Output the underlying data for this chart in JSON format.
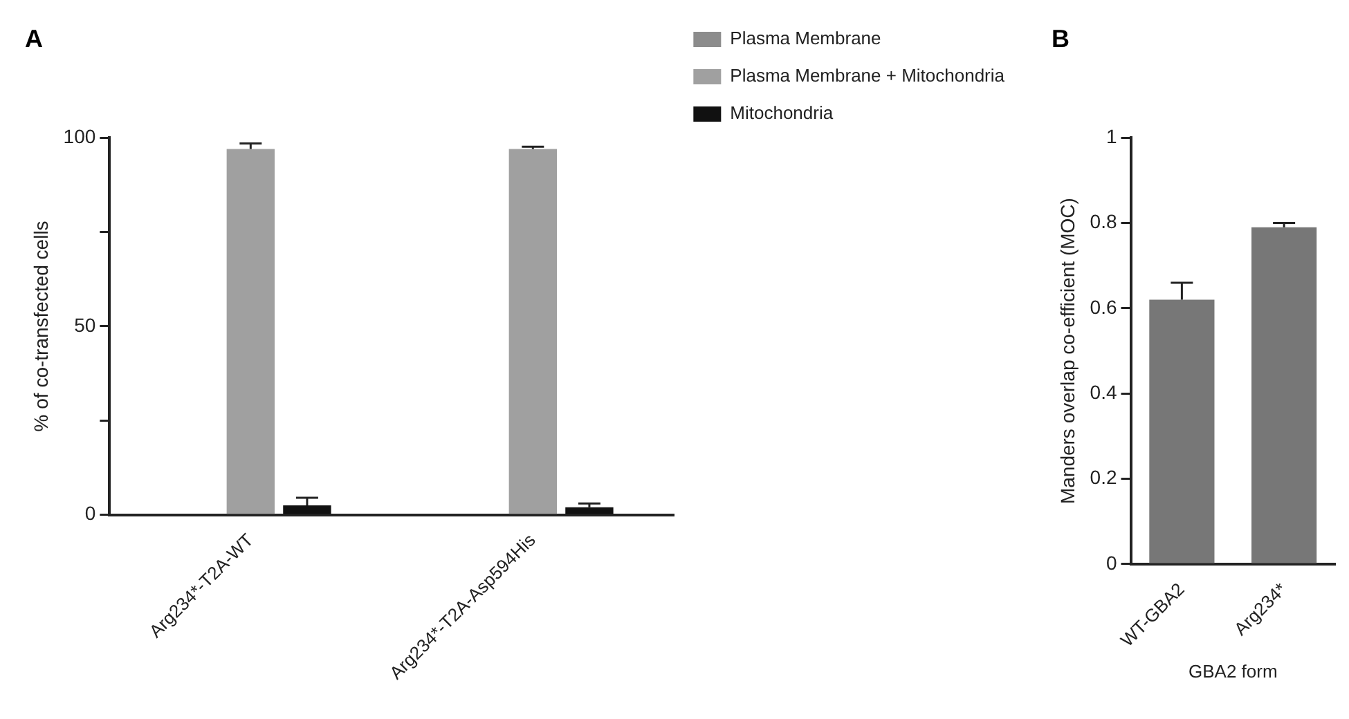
{
  "chart_data": [
    {
      "type": "bar",
      "title": "A",
      "ylabel": "% of co-transfected cells",
      "categories": [
        "Arg234*-T2A-WT",
        "Arg234*-T2A-Asp594His"
      ],
      "series": [
        {
          "name": "Plasma Membrane",
          "color": "#8c8c8c",
          "values": [
            0,
            0
          ]
        },
        {
          "name": "Plasma Membrane + Mitochondria",
          "color": "#a0a0a0",
          "values": [
            97,
            97
          ],
          "errors": [
            [
              97,
              98.5
            ],
            [
              97,
              97.6
            ]
          ]
        },
        {
          "name": "Mitochondria",
          "color": "#111111",
          "values": [
            2.5,
            2
          ],
          "errors": [
            [
              2.5,
              4.5
            ],
            [
              2,
              3
            ]
          ]
        }
      ],
      "ylim": [
        0,
        100
      ],
      "yticks": [
        0,
        {
          "value": 25,
          "label": null
        },
        50,
        {
          "value": 75,
          "label": null
        },
        100
      ],
      "grid": false,
      "legend": "right"
    },
    {
      "type": "bar",
      "title": "B",
      "xlabel": "GBA2 form",
      "ylabel": "Manders overlap co-efficient (MOC)",
      "categories": [
        "WT-GBA2",
        "Arg234*"
      ],
      "series": [
        {
          "color": "#777777",
          "values": [
            0.62,
            0.79
          ],
          "errors": [
            [
              0.62,
              0.66
            ],
            [
              0.79,
              0.8
            ]
          ]
        }
      ],
      "ylim": [
        0,
        1.0
      ],
      "yticks": [
        0,
        0.2,
        0.4,
        0.6,
        0.8,
        1.0
      ],
      "grid": false,
      "legend": false
    }
  ]
}
